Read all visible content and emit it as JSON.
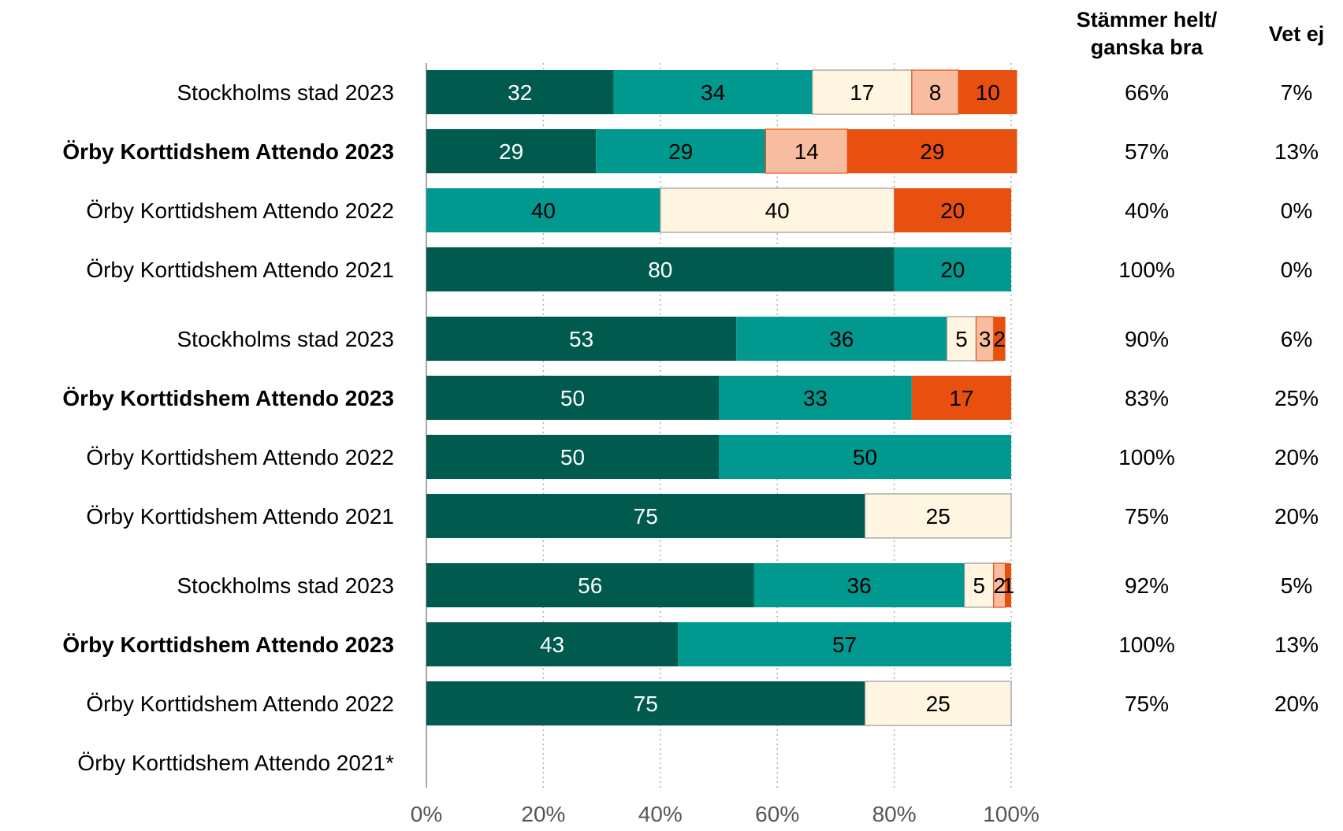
{
  "chart_data": {
    "type": "bar",
    "orientation": "horizontal",
    "stacked": true,
    "xlim": [
      0,
      100
    ],
    "x_ticks": [
      "0%",
      "20%",
      "40%",
      "60%",
      "80%",
      "100%"
    ],
    "grid": "vertical dotted",
    "colors": [
      "#005a4e",
      "#00988f",
      "#fff5e0",
      "#f8bca0",
      "#e8500f"
    ],
    "label_colors": [
      "#ffffff",
      "#000000",
      "#000000",
      "#000000",
      "#000000"
    ],
    "column_headers": {
      "agree": [
        "Stämmer helt/",
        "ganska bra"
      ],
      "dont_know": "Vet ej"
    },
    "groups": [
      {
        "rows": [
          {
            "label": "Stockholms stad 2023",
            "bold": false,
            "values": [
              32,
              34,
              17,
              8,
              10
            ],
            "agree": "66%",
            "dont_know": "7%"
          },
          {
            "label": "Örby Korttidshem Attendo 2023",
            "bold": true,
            "values": [
              29,
              29,
              0,
              14,
              29
            ],
            "agree": "57%",
            "dont_know": "13%"
          },
          {
            "label": "Örby Korttidshem Attendo 2022",
            "bold": false,
            "values": [
              0,
              40,
              40,
              0,
              20
            ],
            "agree": "40%",
            "dont_know": "0%"
          },
          {
            "label": "Örby Korttidshem Attendo 2021",
            "bold": false,
            "values": [
              80,
              20,
              0,
              0,
              0
            ],
            "agree": "100%",
            "dont_know": "0%"
          }
        ]
      },
      {
        "rows": [
          {
            "label": "Stockholms stad 2023",
            "bold": false,
            "values": [
              53,
              36,
              5,
              3,
              2
            ],
            "agree": "90%",
            "dont_know": "6%"
          },
          {
            "label": "Örby Korttidshem Attendo 2023",
            "bold": true,
            "values": [
              50,
              33,
              0,
              0,
              17
            ],
            "agree": "83%",
            "dont_know": "25%"
          },
          {
            "label": "Örby Korttidshem Attendo 2022",
            "bold": false,
            "values": [
              50,
              50,
              0,
              0,
              0
            ],
            "agree": "100%",
            "dont_know": "20%"
          },
          {
            "label": "Örby Korttidshem Attendo 2021",
            "bold": false,
            "values": [
              75,
              0,
              25,
              0,
              0
            ],
            "agree": "75%",
            "dont_know": "20%"
          }
        ]
      },
      {
        "rows": [
          {
            "label": "Stockholms stad 2023",
            "bold": false,
            "values": [
              56,
              36,
              5,
              2,
              1
            ],
            "agree": "92%",
            "dont_know": "5%"
          },
          {
            "label": "Örby Korttidshem Attendo 2023",
            "bold": true,
            "values": [
              43,
              57,
              0,
              0,
              0
            ],
            "agree": "100%",
            "dont_know": "13%"
          },
          {
            "label": "Örby Korttidshem Attendo 2022",
            "bold": false,
            "values": [
              75,
              0,
              25,
              0,
              0
            ],
            "agree": "75%",
            "dont_know": "20%"
          },
          {
            "label": "Örby Korttidshem Attendo 2021*",
            "bold": false,
            "values": [
              0,
              0,
              0,
              0,
              0
            ],
            "agree": "",
            "dont_know": ""
          }
        ]
      }
    ]
  }
}
